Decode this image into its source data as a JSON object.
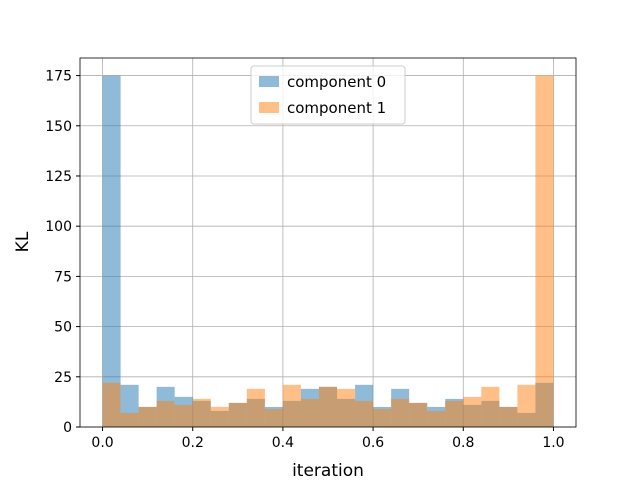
{
  "chart_data": {
    "type": "histogram",
    "xlabel": "iteration",
    "ylabel": "KL",
    "bins": [
      0,
      0.04,
      0.08,
      0.12,
      0.16,
      0.2,
      0.24,
      0.28,
      0.32,
      0.36,
      0.4,
      0.44,
      0.48,
      0.52,
      0.56,
      0.6,
      0.64,
      0.68,
      0.72,
      0.76,
      0.8,
      0.84,
      0.88,
      0.92,
      0.96,
      1
    ],
    "series": [
      {
        "name": "component 0",
        "color": "#1f77b4",
        "values": [
          175,
          21,
          10,
          20,
          15,
          13,
          8,
          12,
          14,
          10,
          13,
          19,
          20,
          14,
          21,
          10,
          19,
          12,
          10,
          14,
          11,
          13,
          10,
          7,
          22
        ]
      },
      {
        "name": "component 1",
        "color": "#ff7f0e",
        "values": [
          22,
          7,
          10,
          13,
          11,
          14,
          10,
          12,
          19,
          9,
          21,
          14,
          20,
          19,
          13,
          9,
          14,
          12,
          8,
          13,
          15,
          20,
          10,
          21,
          175
        ]
      }
    ],
    "opacity": 0.5,
    "xlim": [
      -0.05,
      1.05
    ],
    "ylim": [
      0,
      183.75
    ],
    "xticks": [
      {
        "value": 0,
        "label": "0.0"
      },
      0.2,
      0.4,
      0.6,
      0.8,
      {
        "value": 1,
        "label": "1.0"
      }
    ],
    "yticks": [
      0,
      25,
      50,
      75,
      100,
      125,
      150,
      175
    ],
    "grid": true,
    "legend": "upper center"
  }
}
